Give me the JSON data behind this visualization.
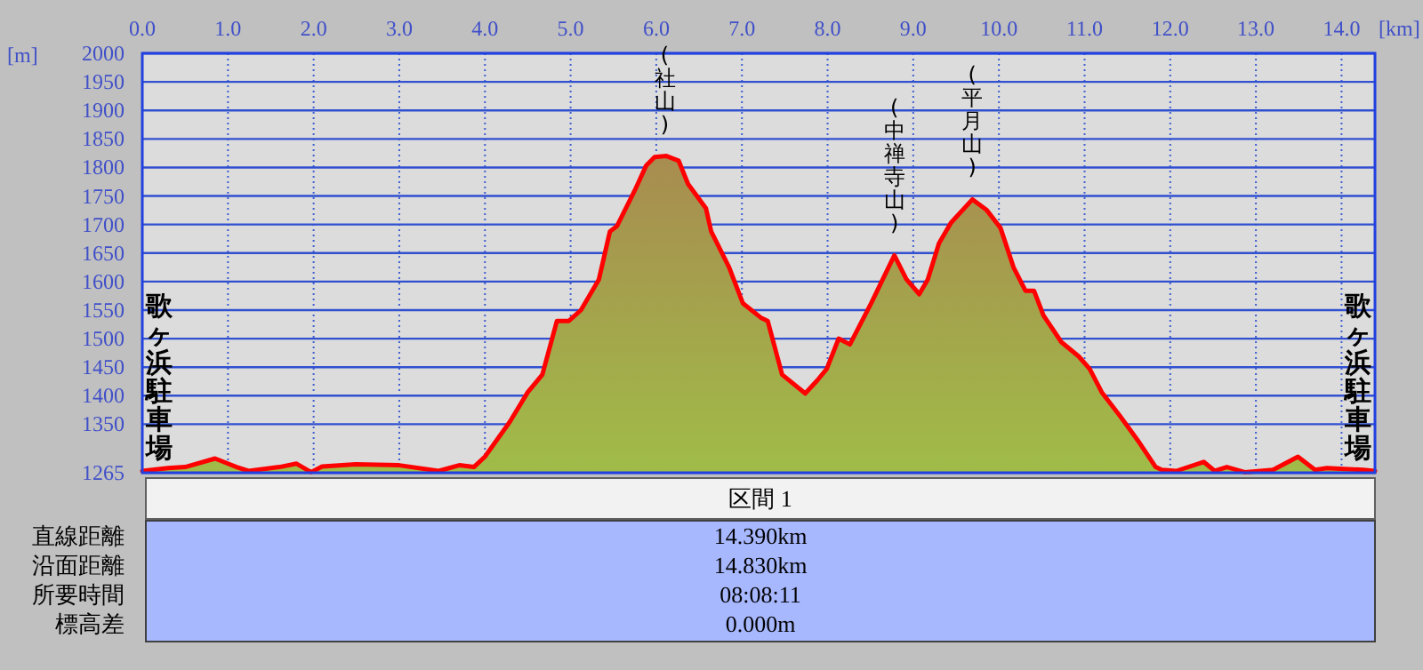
{
  "chart_data": [
    {
      "type": "area",
      "xlabel": "[km]",
      "ylabel": "[m]",
      "xlim": [
        0,
        14.39
      ],
      "ylim": [
        1265,
        2000
      ],
      "xticks": [
        {
          "value": 0,
          "label": "0.0"
        },
        {
          "value": 1,
          "label": "1.0"
        },
        {
          "value": 2,
          "label": "2.0"
        },
        {
          "value": 3,
          "label": "3.0"
        },
        {
          "value": 4,
          "label": "4.0"
        },
        {
          "value": 5,
          "label": "5.0"
        },
        {
          "value": 6,
          "label": "6.0"
        },
        {
          "value": 7,
          "label": "7.0"
        },
        {
          "value": 8,
          "label": "8.0"
        },
        {
          "value": 9,
          "label": "9.0"
        },
        {
          "value": 10,
          "label": "10.0"
        },
        {
          "value": 11,
          "label": "11.0"
        },
        {
          "value": 12,
          "label": "12.0"
        },
        {
          "value": 13,
          "label": "13.0"
        },
        {
          "value": 14,
          "label": "14.0"
        }
      ],
      "yticks": [
        1265,
        1350,
        1400,
        1450,
        1500,
        1550,
        1600,
        1650,
        1700,
        1750,
        1800,
        1850,
        1900,
        1950,
        2000
      ],
      "grid": true,
      "series": [
        {
          "color": "#ff0000",
          "x": [
            0,
            0.3,
            0.5,
            0.85,
            1.1,
            1.24,
            1.6,
            1.8,
            1.97,
            2.1,
            2.49,
            3.0,
            3.46,
            3.7,
            3.87,
            4.0,
            4.29,
            4.5,
            4.67,
            4.84,
            4.98,
            5.12,
            5.33,
            5.46,
            5.54,
            5.75,
            5.88,
            5.98,
            6.12,
            6.26,
            6.37,
            6.58,
            6.64,
            6.85,
            7.01,
            7.22,
            7.3,
            7.47,
            7.74,
            7.88,
            7.99,
            8.13,
            8.26,
            8.51,
            8.78,
            8.92,
            9.07,
            9.17,
            9.3,
            9.44,
            9.69,
            9.86,
            10.02,
            10.17,
            10.31,
            10.41,
            10.52,
            10.73,
            10.93,
            11.06,
            11.2,
            11.41,
            11.62,
            11.83,
            11.9,
            12.07,
            12.39,
            12.52,
            12.66,
            12.87,
            13.2,
            13.49,
            13.69,
            13.83,
            14.25,
            14.39
          ],
          "values": [
            1268,
            1273,
            1275,
            1290,
            1275,
            1268,
            1275,
            1281,
            1266,
            1276,
            1280,
            1278,
            1268,
            1278,
            1275,
            1293,
            1354,
            1406,
            1437,
            1531,
            1531,
            1550,
            1604,
            1688,
            1697,
            1760,
            1803,
            1818,
            1820,
            1812,
            1771,
            1728,
            1688,
            1625,
            1562,
            1537,
            1531,
            1437,
            1404,
            1427,
            1447,
            1500,
            1490,
            1562,
            1646,
            1604,
            1578,
            1604,
            1667,
            1703,
            1744,
            1725,
            1694,
            1625,
            1584,
            1584,
            1541,
            1494,
            1469,
            1447,
            1406,
            1365,
            1322,
            1275,
            1270,
            1268,
            1284,
            1268,
            1275,
            1266,
            1270,
            1293,
            1270,
            1273,
            1270,
            1268
          ]
        }
      ],
      "annotations": [
        {
          "text": "歌ヶ浜駐車場",
          "x": 0,
          "y": 1268
        },
        {
          "text": "(社山)",
          "x": 6.1,
          "y": 1820
        },
        {
          "text": "(中禅寺山)",
          "x": 8.78,
          "y": 1646
        },
        {
          "text": "(平月山)",
          "x": 9.69,
          "y": 1744
        },
        {
          "text": "歌ヶ浜駐車場",
          "x": 14.39,
          "y": 1268
        }
      ]
    },
    {
      "type": "other",
      "title": "区間 1",
      "categories": [
        "直線距離",
        "沿面距離",
        "所要時間",
        "標高差"
      ],
      "value_labels": [
        "14.390km",
        "14.830km",
        "08:08:11",
        "0.000m"
      ]
    }
  ]
}
